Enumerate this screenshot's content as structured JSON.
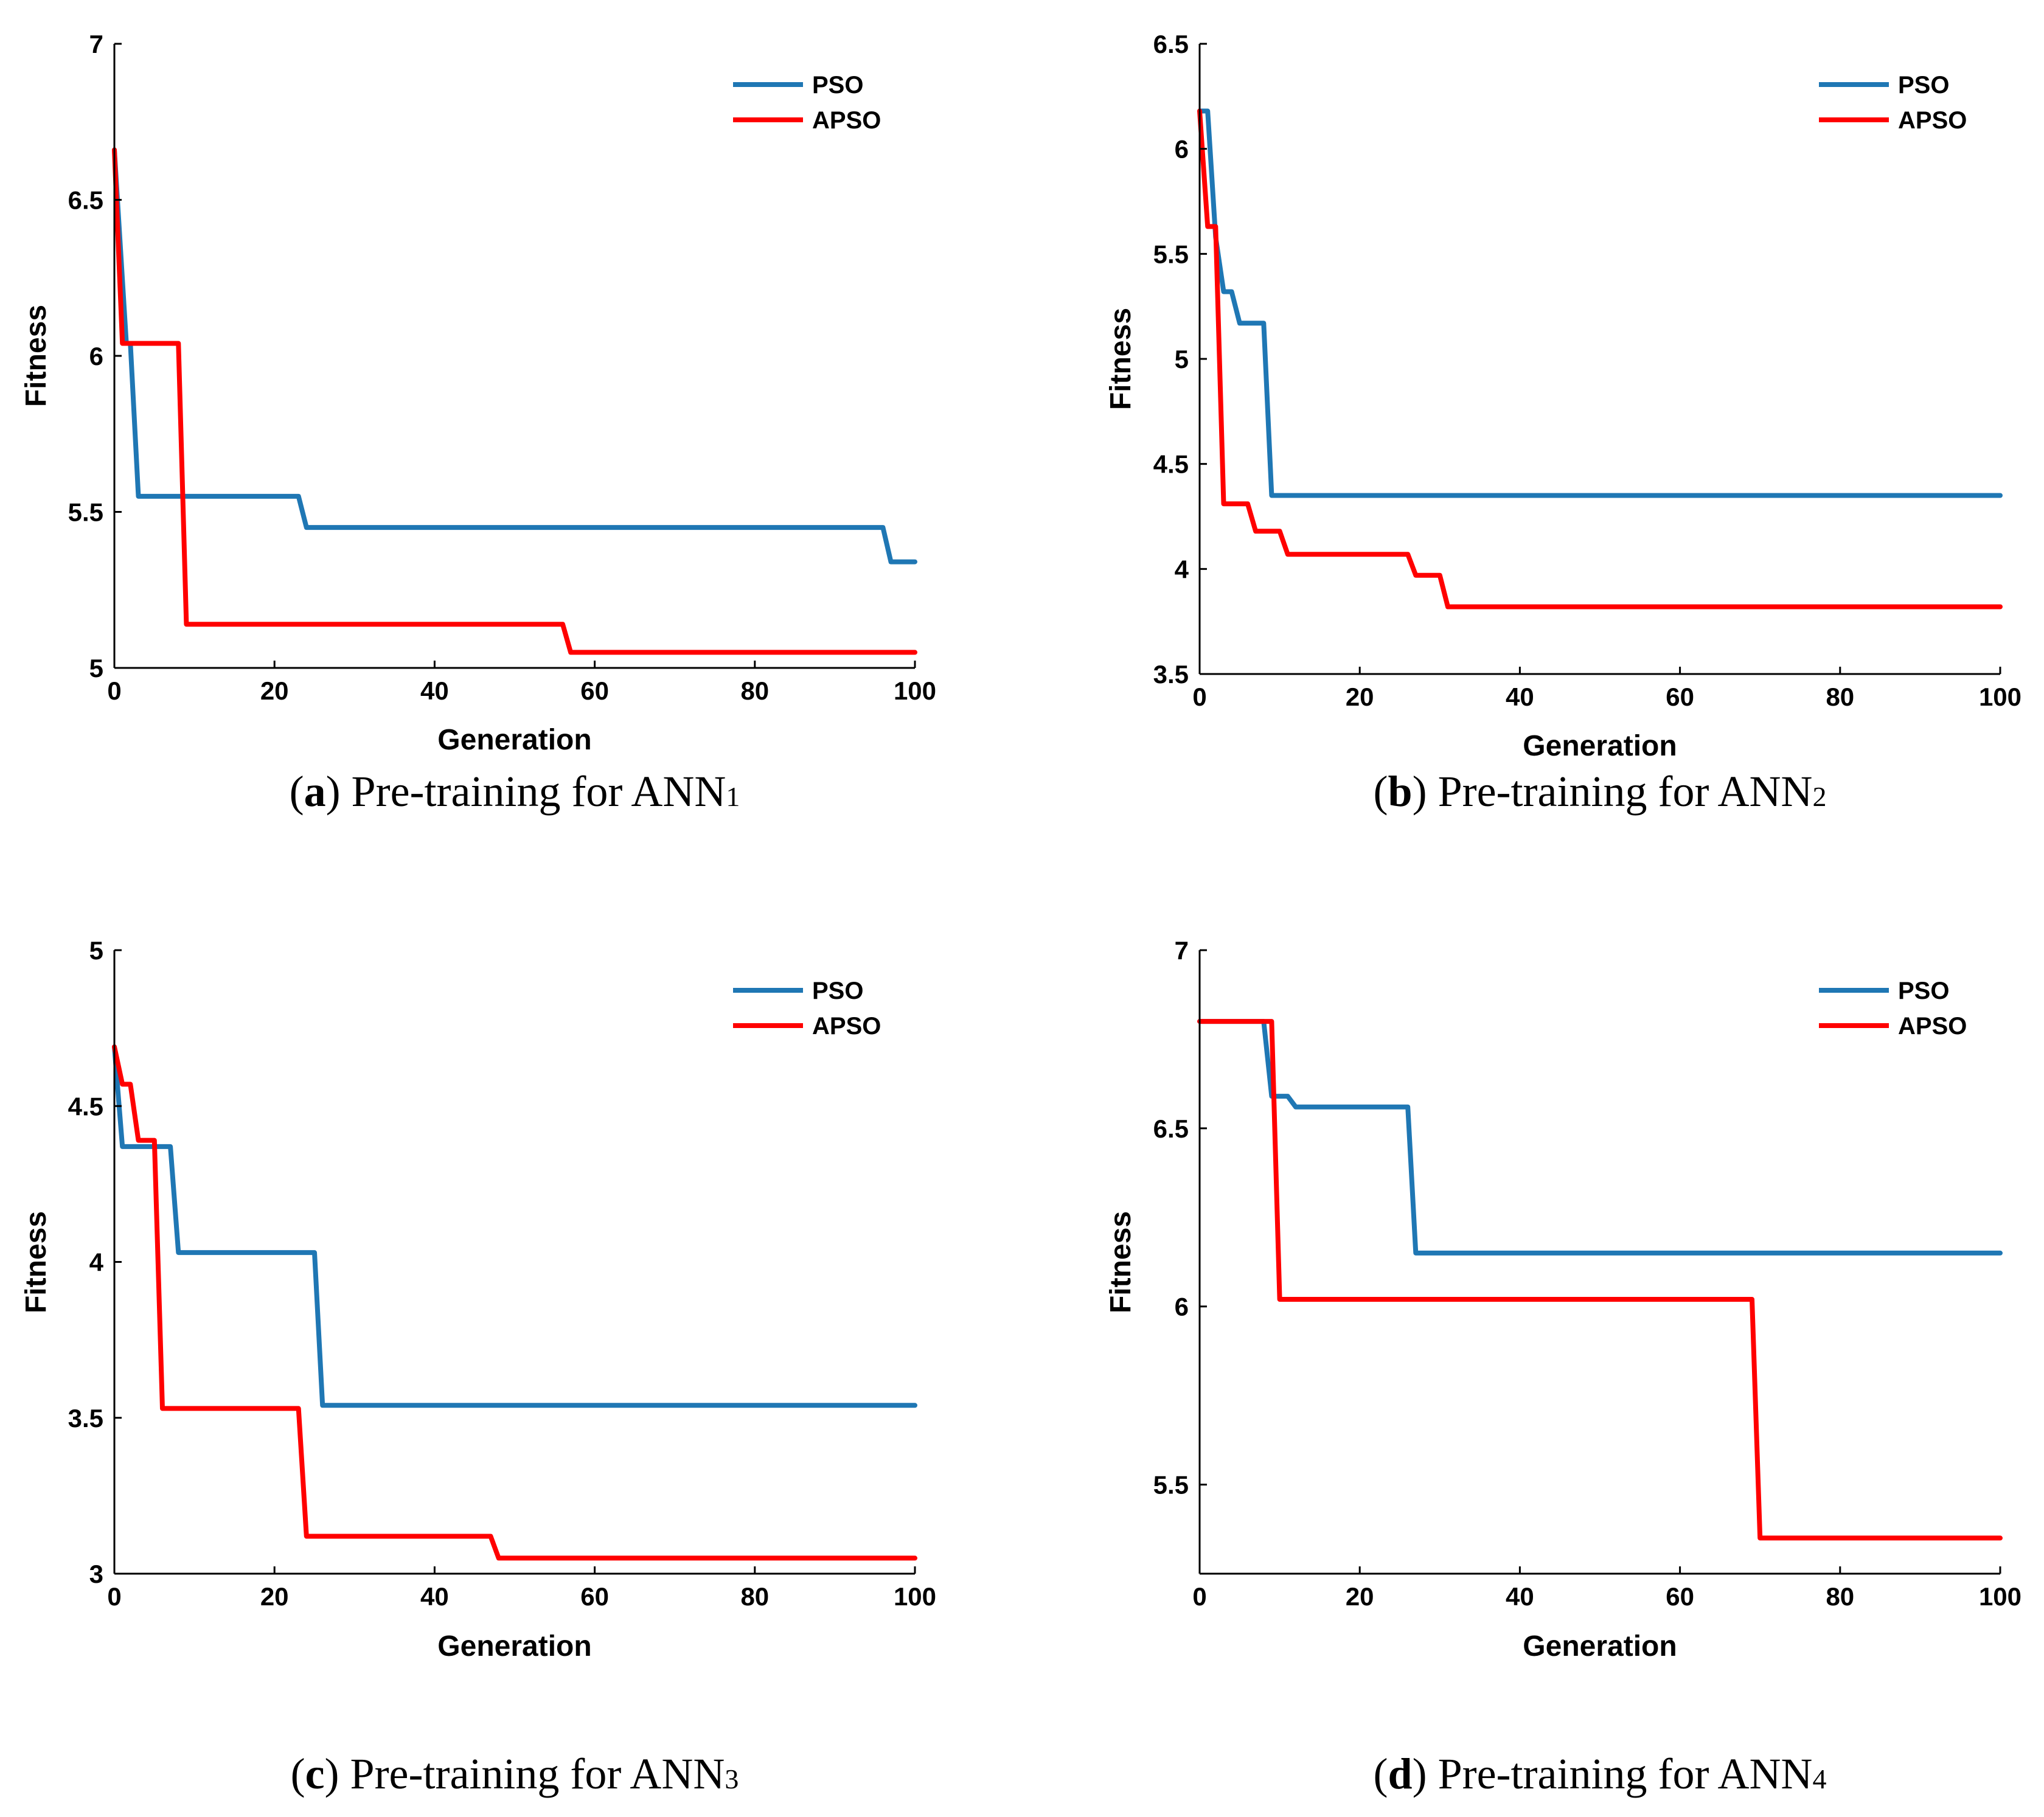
{
  "chart_data": [
    {
      "type": "line",
      "caption": {
        "letter": "a",
        "text": "Pre-training for ANN",
        "subscript": "1"
      },
      "xlabel": "Generation",
      "ylabel": "Fitness",
      "xlim": [
        0,
        100
      ],
      "ylim": [
        5,
        7
      ],
      "xticks": [
        0,
        20,
        40,
        60,
        80,
        100
      ],
      "yticks": [
        5,
        5.5,
        6,
        6.5,
        7
      ],
      "ytick_labels": [
        "5",
        "5.5",
        "6",
        "6.5",
        "7"
      ],
      "legend": "top-right",
      "series": [
        {
          "name": "PSO",
          "color": "#1f77b4",
          "points": [
            [
              0,
              6.66
            ],
            [
              1.5,
              6.04
            ],
            [
              2,
              6.04
            ],
            [
              3,
              5.55
            ],
            [
              23,
              5.55
            ],
            [
              24,
              5.45
            ],
            [
              96,
              5.45
            ],
            [
              97,
              5.34
            ],
            [
              100,
              5.34
            ]
          ]
        },
        {
          "name": "APSO",
          "color": "#ff0000",
          "points": [
            [
              0,
              6.66
            ],
            [
              1,
              6.04
            ],
            [
              8,
              6.04
            ],
            [
              9,
              5.14
            ],
            [
              56,
              5.14
            ],
            [
              57,
              5.05
            ],
            [
              100,
              5.05
            ]
          ]
        }
      ]
    },
    {
      "type": "line",
      "caption": {
        "letter": "b",
        "text": "Pre-training for ANN",
        "subscript": "2"
      },
      "xlabel": "Generation",
      "ylabel": "Fitness",
      "xlim": [
        0,
        100
      ],
      "ylim": [
        3.5,
        6.5
      ],
      "xticks": [
        0,
        20,
        40,
        60,
        80,
        100
      ],
      "yticks": [
        3.5,
        4,
        4.5,
        5,
        5.5,
        6,
        6.5
      ],
      "ytick_labels": [
        "3.5",
        "4",
        "4.5",
        "5",
        "5.5",
        "6",
        "6.5"
      ],
      "legend": "top-right",
      "series": [
        {
          "name": "PSO",
          "color": "#1f77b4",
          "points": [
            [
              0,
              6.18
            ],
            [
              1,
              6.18
            ],
            [
              2,
              5.58
            ],
            [
              3,
              5.32
            ],
            [
              4,
              5.32
            ],
            [
              5,
              5.17
            ],
            [
              8,
              5.17
            ],
            [
              9,
              4.35
            ],
            [
              100,
              4.35
            ]
          ]
        },
        {
          "name": "APSO",
          "color": "#ff0000",
          "points": [
            [
              0,
              6.18
            ],
            [
              1,
              5.63
            ],
            [
              2,
              5.63
            ],
            [
              3,
              4.31
            ],
            [
              6,
              4.31
            ],
            [
              7,
              4.18
            ],
            [
              10,
              4.18
            ],
            [
              11,
              4.07
            ],
            [
              26,
              4.07
            ],
            [
              27,
              3.97
            ],
            [
              30,
              3.97
            ],
            [
              31,
              3.82
            ],
            [
              100,
              3.82
            ]
          ]
        }
      ]
    },
    {
      "type": "line",
      "caption": {
        "letter": "c",
        "text": "Pre-training for ANN",
        "subscript": "3"
      },
      "xlabel": "Generation",
      "ylabel": "Fitness",
      "xlim": [
        0,
        100
      ],
      "ylim": [
        3,
        5
      ],
      "xticks": [
        0,
        20,
        40,
        60,
        80,
        100
      ],
      "yticks": [
        3,
        3.5,
        4,
        4.5,
        5
      ],
      "ytick_labels": [
        "3",
        "3.5",
        "4",
        "4.5",
        "5"
      ],
      "legend": "top-right",
      "series": [
        {
          "name": "PSO",
          "color": "#1f77b4",
          "points": [
            [
              0,
              4.69
            ],
            [
              1,
              4.37
            ],
            [
              7,
              4.37
            ],
            [
              8,
              4.03
            ],
            [
              25,
              4.03
            ],
            [
              26,
              3.54
            ],
            [
              100,
              3.54
            ]
          ]
        },
        {
          "name": "APSO",
          "color": "#ff0000",
          "points": [
            [
              0,
              4.69
            ],
            [
              1,
              4.57
            ],
            [
              2,
              4.57
            ],
            [
              3,
              4.39
            ],
            [
              5,
              4.39
            ],
            [
              6,
              3.53
            ],
            [
              23,
              3.53
            ],
            [
              24,
              3.12
            ],
            [
              47,
              3.12
            ],
            [
              48,
              3.05
            ],
            [
              100,
              3.05
            ]
          ]
        }
      ]
    },
    {
      "type": "line",
      "caption": {
        "letter": "d",
        "text": "Pre-training for ANN",
        "subscript": "4"
      },
      "xlabel": "Generation",
      "ylabel": "Fitness",
      "xlim": [
        0,
        100
      ],
      "ylim": [
        5.25,
        7
      ],
      "xticks": [
        0,
        20,
        40,
        60,
        80,
        100
      ],
      "yticks": [
        5.5,
        6,
        6.5,
        7
      ],
      "ytick_labels": [
        "5.5",
        "6",
        "6.5",
        "7"
      ],
      "legend": "top-right",
      "series": [
        {
          "name": "PSO",
          "color": "#1f77b4",
          "points": [
            [
              0,
              6.8
            ],
            [
              8,
              6.8
            ],
            [
              9,
              6.59
            ],
            [
              11,
              6.59
            ],
            [
              12,
              6.56
            ],
            [
              26,
              6.56
            ],
            [
              27,
              6.15
            ],
            [
              100,
              6.15
            ]
          ]
        },
        {
          "name": "APSO",
          "color": "#ff0000",
          "points": [
            [
              0,
              6.8
            ],
            [
              9,
              6.8
            ],
            [
              10,
              6.02
            ],
            [
              69,
              6.02
            ],
            [
              70,
              5.35
            ],
            [
              100,
              5.35
            ]
          ]
        }
      ]
    }
  ]
}
